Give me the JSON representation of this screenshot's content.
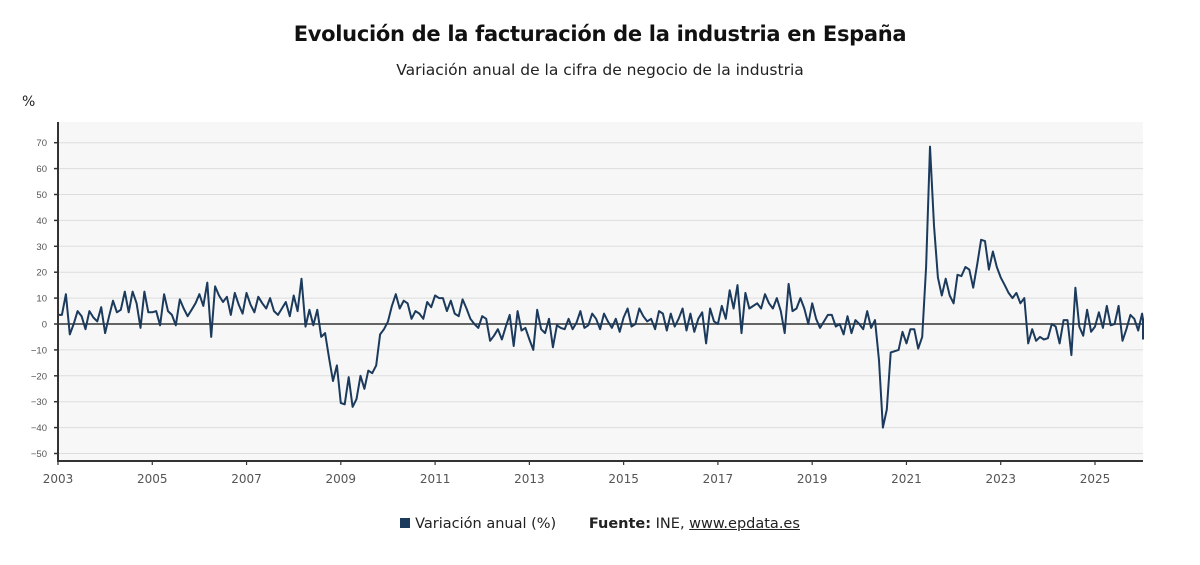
{
  "chart_data": {
    "type": "line",
    "title": "Evolución de la facturación de la industria en España",
    "subtitle": "Variación anual de la cifra de negocio de la industria",
    "ylabel": "%",
    "xlabel": "",
    "ylim": [
      -52,
      78
    ],
    "yticks": [
      70,
      60,
      50,
      40,
      30,
      20,
      10,
      0,
      -10,
      -20,
      -30,
      -40,
      -50
    ],
    "ytick_labels": [
      "70",
      "60",
      "50",
      "40",
      "30",
      "20",
      "10",
      "0",
      "−10",
      "−20",
      "−30",
      "−40",
      "−50"
    ],
    "xticks": [
      "2003",
      "2005",
      "2007",
      "2009",
      "2011",
      "2013",
      "2015",
      "2017",
      "2019",
      "2021",
      "2023",
      "2025"
    ],
    "x_start": "2003-01",
    "frequency": "monthly",
    "grid": true,
    "legend_position": "bottom",
    "series": [
      {
        "name": "Variación anual (%)",
        "color": "#1b3a5c",
        "values": [
          3.5,
          3.5,
          11.5,
          -4,
          0,
          5,
          3,
          -2,
          5,
          2.5,
          1,
          6.5,
          -3.5,
          3,
          9,
          4.5,
          5.5,
          12.5,
          4.5,
          12.5,
          8,
          -1.5,
          12.5,
          4.5,
          4.5,
          5,
          -0.5,
          11.5,
          5,
          3.5,
          -0.5,
          9.5,
          6,
          3,
          5.5,
          8,
          11.5,
          7,
          16,
          -5,
          14.5,
          11,
          8.5,
          10.5,
          3.5,
          12,
          7.5,
          4,
          12,
          7.5,
          4.5,
          10.5,
          8,
          6,
          10,
          5,
          3.5,
          6,
          8.5,
          3,
          11,
          5,
          17.5,
          -1,
          5.5,
          -0.5,
          5.5,
          -5,
          -3.5,
          -13,
          -22,
          -16,
          -30.5,
          -31,
          -20.5,
          -32,
          -29,
          -20,
          -25,
          -18,
          -19,
          -16,
          -4,
          -2,
          1,
          7,
          11.5,
          6,
          9,
          8,
          2,
          5,
          4,
          2,
          8.5,
          6.5,
          11,
          10,
          10,
          5,
          9,
          4,
          3,
          9.5,
          6,
          2,
          0,
          -1.5,
          3,
          2,
          -6.5,
          -4.5,
          -2,
          -6,
          -1,
          3.5,
          -8.5,
          5,
          -2.5,
          -1.5,
          -6,
          -10,
          5.5,
          -2,
          -3.5,
          2,
          -9,
          -0.5,
          -1.5,
          -2,
          2,
          -2,
          0.5,
          5,
          -1.5,
          -0.5,
          4,
          2,
          -2,
          4,
          1,
          -1.5,
          2,
          -3,
          2.5,
          6,
          -1,
          0,
          6,
          3,
          1,
          2,
          -2,
          5,
          4,
          -2.5,
          4,
          -1,
          2,
          6,
          -2.5,
          4,
          -3,
          2,
          4.5,
          -7.5,
          6,
          1,
          0,
          7,
          2,
          13,
          6,
          15,
          -3.5,
          12,
          6,
          7,
          8,
          6,
          11.5,
          8,
          6,
          10,
          5,
          -3.5,
          15.5,
          5,
          6,
          10,
          6,
          0,
          8,
          2,
          -1.5,
          1,
          3.5,
          3.5,
          -1,
          0,
          -4,
          3,
          -3.5,
          1.5,
          0,
          -2,
          5,
          -1.5,
          1.5,
          -14,
          -40,
          -33,
          -11,
          -10.5,
          -10,
          -3,
          -7.5,
          -2,
          -2,
          -9.5,
          -5,
          22,
          68.5,
          38,
          18,
          11,
          17.5,
          11,
          8,
          19,
          18.5,
          22,
          21,
          14,
          23,
          32.5,
          32,
          21,
          28,
          22,
          18,
          15,
          12,
          10,
          12,
          8,
          10,
          -7.5,
          -2,
          -6.5,
          -5,
          -6,
          -5.5,
          0,
          -1,
          -7.5,
          1.5,
          1.5,
          -12,
          14,
          -1,
          -4.5,
          5.5,
          -3,
          -1,
          4.5,
          -1.5,
          7,
          -0.5,
          0,
          7,
          -6.5,
          -2,
          3.5,
          2,
          -2.5,
          4,
          1.5,
          -3,
          2,
          -6
        ]
      }
    ],
    "source_label": "Fuente:",
    "source_text": "INE,",
    "source_link": "www.epdata.es"
  }
}
